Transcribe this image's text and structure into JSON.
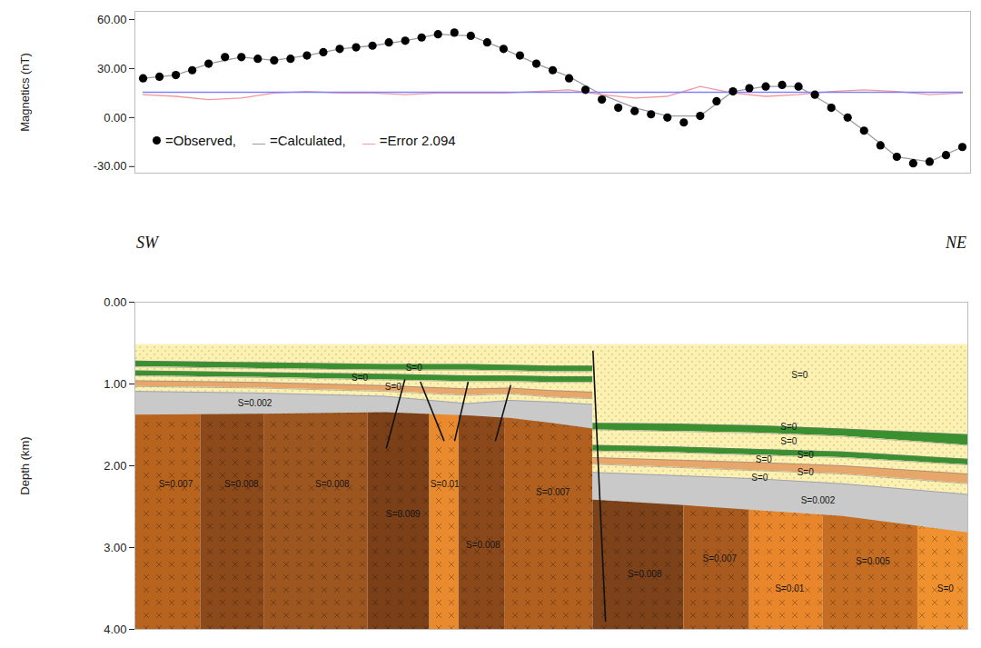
{
  "chart_data": [
    {
      "type": "line",
      "y_label": "Magnetics (nT)",
      "xlim": [
        -1,
        101
      ],
      "ylim": [
        -34,
        65
      ],
      "yticks": [
        {
          "value": -30,
          "label": "-30.00"
        },
        {
          "value": 0,
          "label": "0.00"
        },
        {
          "value": 30,
          "label": "30.00"
        },
        {
          "value": 60,
          "label": "60.00"
        }
      ],
      "tick_labels": "y",
      "grid": false,
      "legend": "bottom-left",
      "series": [
        {
          "name": "=Calculated,",
          "type": "line",
          "color": "#9a9aa8",
          "x": [
            0,
            4,
            8,
            12,
            16,
            20,
            24,
            28,
            32,
            36,
            40,
            44,
            48,
            52,
            56,
            60,
            64,
            68,
            72,
            76,
            80,
            84,
            88,
            92,
            96,
            100
          ],
          "values": [
            24,
            26,
            33,
            37,
            35,
            38,
            42,
            44,
            47,
            51,
            50,
            42,
            33,
            25,
            14,
            6,
            1,
            1,
            16,
            19,
            19,
            7,
            -8,
            -24,
            -27,
            -18
          ]
        },
        {
          "name": "=Error 2.094",
          "type": "line",
          "color": "#f29a9a",
          "x": [
            0,
            4,
            8,
            12,
            16,
            20,
            24,
            28,
            32,
            36,
            40,
            44,
            48,
            52,
            56,
            60,
            64,
            68,
            72,
            76,
            80,
            84,
            88,
            92,
            96,
            100
          ],
          "values": [
            14,
            13,
            11,
            12,
            15,
            16,
            15,
            15,
            14,
            15,
            15,
            15,
            16,
            17,
            14,
            12,
            13,
            19,
            15,
            13,
            14,
            16,
            17,
            16,
            14,
            15
          ]
        },
        {
          "type": "line",
          "color": "#8080ff",
          "x": [
            0,
            100
          ],
          "values": [
            15.5,
            15.5
          ]
        },
        {
          "name": "=Observed,",
          "type": "scatter",
          "marker": "circle",
          "color": "#000000",
          "x": [
            0,
            2,
            4,
            6,
            8,
            10,
            12,
            14,
            16,
            18,
            20,
            22,
            24,
            26,
            28,
            30,
            32,
            34,
            36,
            38,
            40,
            42,
            44,
            46,
            48,
            50,
            52,
            54,
            56,
            58,
            60,
            62,
            64,
            66,
            68,
            70,
            72,
            74,
            76,
            78,
            80,
            82,
            84,
            86,
            88,
            90,
            92,
            94,
            96,
            98,
            100
          ],
          "values": [
            24,
            25,
            26,
            29,
            33,
            37,
            37,
            36,
            35,
            36,
            38,
            40,
            42,
            43,
            44,
            46,
            47,
            49,
            51,
            52,
            50,
            46,
            42,
            38,
            33,
            29,
            24,
            17,
            11,
            6,
            4,
            2,
            0,
            -3,
            1,
            10,
            16,
            18,
            19,
            20,
            19,
            14,
            6,
            0,
            -8,
            -17,
            -24,
            -28,
            -27,
            -23,
            -18
          ]
        }
      ]
    },
    {
      "type": "cross_section",
      "y_label": "Depth (km)",
      "direction_labels": [
        "SW",
        "NE"
      ],
      "xlim": [
        0,
        100
      ],
      "ylim": [
        0,
        4
      ],
      "yticks": [
        {
          "value": 0,
          "label": "0.00"
        },
        {
          "value": 1,
          "label": "1.00"
        },
        {
          "value": 2,
          "label": "2.00"
        },
        {
          "value": 3,
          "label": "3.00"
        },
        {
          "value": 4,
          "label": "4.00"
        }
      ],
      "tick_labels": "y",
      "sections": [
        {
          "x": [
            0,
            15,
            30,
            40,
            45,
            50,
            55
          ],
          "boundaries": [
            [
              0.52,
              0.52,
              0.52,
              0.52,
              0.52,
              0.52,
              0.52
            ],
            [
              0.72,
              0.74,
              0.76,
              0.76,
              0.77,
              0.78,
              0.78
            ],
            [
              0.79,
              0.81,
              0.83,
              0.83,
              0.84,
              0.85,
              0.85
            ],
            [
              0.84,
              0.86,
              0.88,
              0.9,
              0.9,
              0.91,
              0.91
            ],
            [
              0.9,
              0.92,
              0.95,
              0.97,
              0.97,
              0.98,
              0.98
            ],
            [
              0.96,
              0.98,
              1.02,
              1.06,
              1.05,
              1.08,
              1.1
            ],
            [
              1.03,
              1.05,
              1.09,
              1.14,
              1.12,
              1.16,
              1.18
            ],
            [
              1.09,
              1.11,
              1.15,
              1.24,
              1.2,
              1.22,
              1.25
            ],
            [
              1.38,
              1.37,
              1.35,
              1.39,
              1.42,
              1.48,
              1.55
            ]
          ],
          "layer_colors": [
            "#fbf1b3",
            "#3a8f2f",
            "#fbf1b3",
            "#3a8f2f",
            "#fbf1b3",
            "#e7a66a",
            "#fbf1b3",
            "#c9c9c9"
          ],
          "blocks": [
            {
              "x": [
                0,
                7.9
              ],
              "color": "#b8641f",
              "label": "S=0.007",
              "label_at": [
                4.9,
                2.22
              ]
            },
            {
              "x": [
                7.9,
                15.5
              ],
              "color": "#8c4a1b",
              "label": "S=0.008",
              "label_at": [
                12.8,
                2.22
              ]
            },
            {
              "x": [
                15.5,
                28
              ],
              "color": "#9e5621",
              "label": "S=0.008",
              "label_at": [
                23.7,
                2.22
              ]
            },
            {
              "x": [
                28,
                35.4
              ],
              "color": "#7b4018",
              "label": "S=0.009",
              "label_at": [
                32.2,
                2.59
              ]
            },
            {
              "x": [
                35.4,
                38.9
              ],
              "color": "#ea8a2e",
              "label": "S=0.01",
              "label_at": [
                37.2,
                2.22
              ]
            },
            {
              "x": [
                38.9,
                44.4
              ],
              "color": "#8a481b",
              "label": "S=0.008",
              "label_at": [
                41.8,
                2.97
              ]
            },
            {
              "x": [
                44.4,
                55
              ],
              "color": "#b1601f",
              "label": "S=0.007",
              "label_at": [
                50.2,
                2.33
              ]
            }
          ]
        },
        {
          "x": [
            55,
            65,
            75,
            85,
            100
          ],
          "boundaries": [
            [
              0.52,
              0.52,
              0.52,
              0.52,
              0.52
            ],
            [
              1.48,
              1.49,
              1.51,
              1.55,
              1.62
            ],
            [
              1.56,
              1.58,
              1.6,
              1.64,
              1.75
            ],
            [
              1.75,
              1.77,
              1.8,
              1.83,
              1.92
            ],
            [
              1.82,
              1.84,
              1.87,
              1.9,
              1.99
            ],
            [
              1.9,
              1.93,
              1.96,
              2.0,
              2.1
            ],
            [
              1.98,
              2.02,
              2.06,
              2.1,
              2.22
            ],
            [
              2.08,
              2.12,
              2.16,
              2.22,
              2.35
            ],
            [
              2.42,
              2.48,
              2.55,
              2.62,
              2.82
            ]
          ],
          "layer_colors": [
            "#fbf1b3",
            "#3a8f2f",
            "#fbf1b3",
            "#3a8f2f",
            "#fbf1b3",
            "#e7a66a",
            "#fbf1b3",
            "#c9c9c9"
          ],
          "blocks": [
            {
              "x": [
                55,
                65.9
              ],
              "color": "#7d4219",
              "label": "S=0.008",
              "label_at": [
                61.2,
                3.33
              ]
            },
            {
              "x": [
                65.9,
                73.8
              ],
              "color": "#a85a1f",
              "label": "S=0.007",
              "label_at": [
                70.2,
                3.14
              ]
            },
            {
              "x": [
                73.8,
                82.6
              ],
              "color": "#e9862c",
              "label": "S=0.01",
              "label_at": [
                78.6,
                3.5
              ]
            },
            {
              "x": [
                82.6,
                94
              ],
              "color": "#c66d24",
              "label": "S=0.005",
              "label_at": [
                88.6,
                3.17
              ]
            },
            {
              "x": [
                94,
                100
              ],
              "color": "#f0912f",
              "label": "S=0",
              "label_at": [
                97.3,
                3.5
              ]
            }
          ]
        }
      ],
      "faults": [
        {
          "x": [
            55,
            56.5
          ],
          "depth": [
            0.6,
            3.9
          ]
        },
        {
          "x": [
            32.4,
            30.2
          ],
          "depth": [
            0.95,
            1.78
          ]
        },
        {
          "x": [
            34.3,
            37.1
          ],
          "depth": [
            0.98,
            1.69
          ]
        },
        {
          "x": [
            40,
            38.4
          ],
          "depth": [
            0.98,
            1.69
          ]
        },
        {
          "x": [
            45.1,
            43.3
          ],
          "depth": [
            1.02,
            1.69
          ]
        }
      ],
      "annotations": [
        {
          "text": "S=0",
          "x": 33.5,
          "depth": 0.8
        },
        {
          "text": "S=0",
          "x": 27,
          "depth": 0.92
        },
        {
          "text": "S=0",
          "x": 31,
          "depth": 1.04
        },
        {
          "text": "S=0.002",
          "x": 14.4,
          "depth": 1.24
        },
        {
          "text": "S=0",
          "x": 79.8,
          "depth": 0.89
        },
        {
          "text": "S=0",
          "x": 78.5,
          "depth": 1.52
        },
        {
          "text": "S=0",
          "x": 78.5,
          "depth": 1.7
        },
        {
          "text": "S=0",
          "x": 75.5,
          "depth": 1.93
        },
        {
          "text": "S=0",
          "x": 80.5,
          "depth": 1.87
        },
        {
          "text": "S=0",
          "x": 75,
          "depth": 2.15
        },
        {
          "text": "S=0",
          "x": 80.5,
          "depth": 2.08
        },
        {
          "text": "S=0.002",
          "x": 82,
          "depth": 2.42
        }
      ]
    }
  ]
}
